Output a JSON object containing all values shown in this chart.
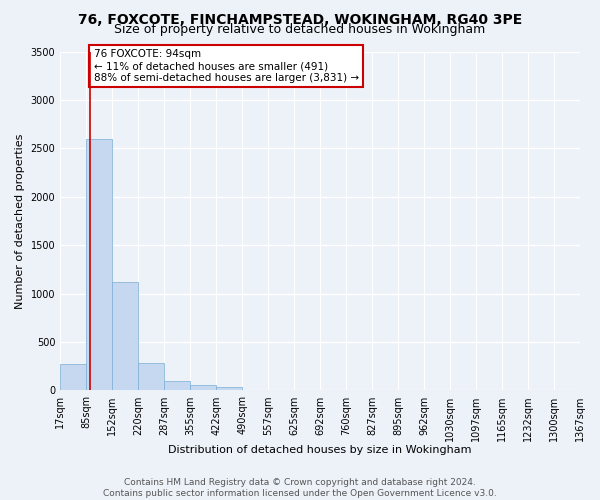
{
  "title1": "76, FOXCOTE, FINCHAMPSTEAD, WOKINGHAM, RG40 3PE",
  "title2": "Size of property relative to detached houses in Wokingham",
  "xlabel": "Distribution of detached houses by size in Wokingham",
  "ylabel": "Number of detached properties",
  "bar_color": "#c5d8f0",
  "bar_edge_color": "#7aafd4",
  "property_line_color": "#cc0000",
  "property_value_bin": 1,
  "annotation_text": "76 FOXCOTE: 94sqm\n← 11% of detached houses are smaller (491)\n88% of semi-detached houses are larger (3,831) →",
  "bin_labels": [
    "17sqm",
    "85sqm",
    "152sqm",
    "220sqm",
    "287sqm",
    "355sqm",
    "422sqm",
    "490sqm",
    "557sqm",
    "625sqm",
    "692sqm",
    "760sqm",
    "827sqm",
    "895sqm",
    "962sqm",
    "1030sqm",
    "1097sqm",
    "1165sqm",
    "1232sqm",
    "1300sqm",
    "1367sqm"
  ],
  "bar_heights": [
    270,
    2600,
    1120,
    285,
    95,
    60,
    40,
    0,
    0,
    0,
    0,
    0,
    0,
    0,
    0,
    0,
    0,
    0,
    0,
    0
  ],
  "num_bins": 20,
  "ylim": [
    0,
    3500
  ],
  "yticks": [
    0,
    500,
    1000,
    1500,
    2000,
    2500,
    3000,
    3500
  ],
  "footer1": "Contains HM Land Registry data © Crown copyright and database right 2024.",
  "footer2": "Contains public sector information licensed under the Open Government Licence v3.0.",
  "background_color": "#edf2f9",
  "plot_bg_color": "#edf2f9",
  "grid_color": "#ffffff",
  "title_fontsize": 10,
  "subtitle_fontsize": 9,
  "axis_label_fontsize": 8,
  "tick_fontsize": 7,
  "footer_fontsize": 6.5,
  "annotation_fontsize": 7.5
}
